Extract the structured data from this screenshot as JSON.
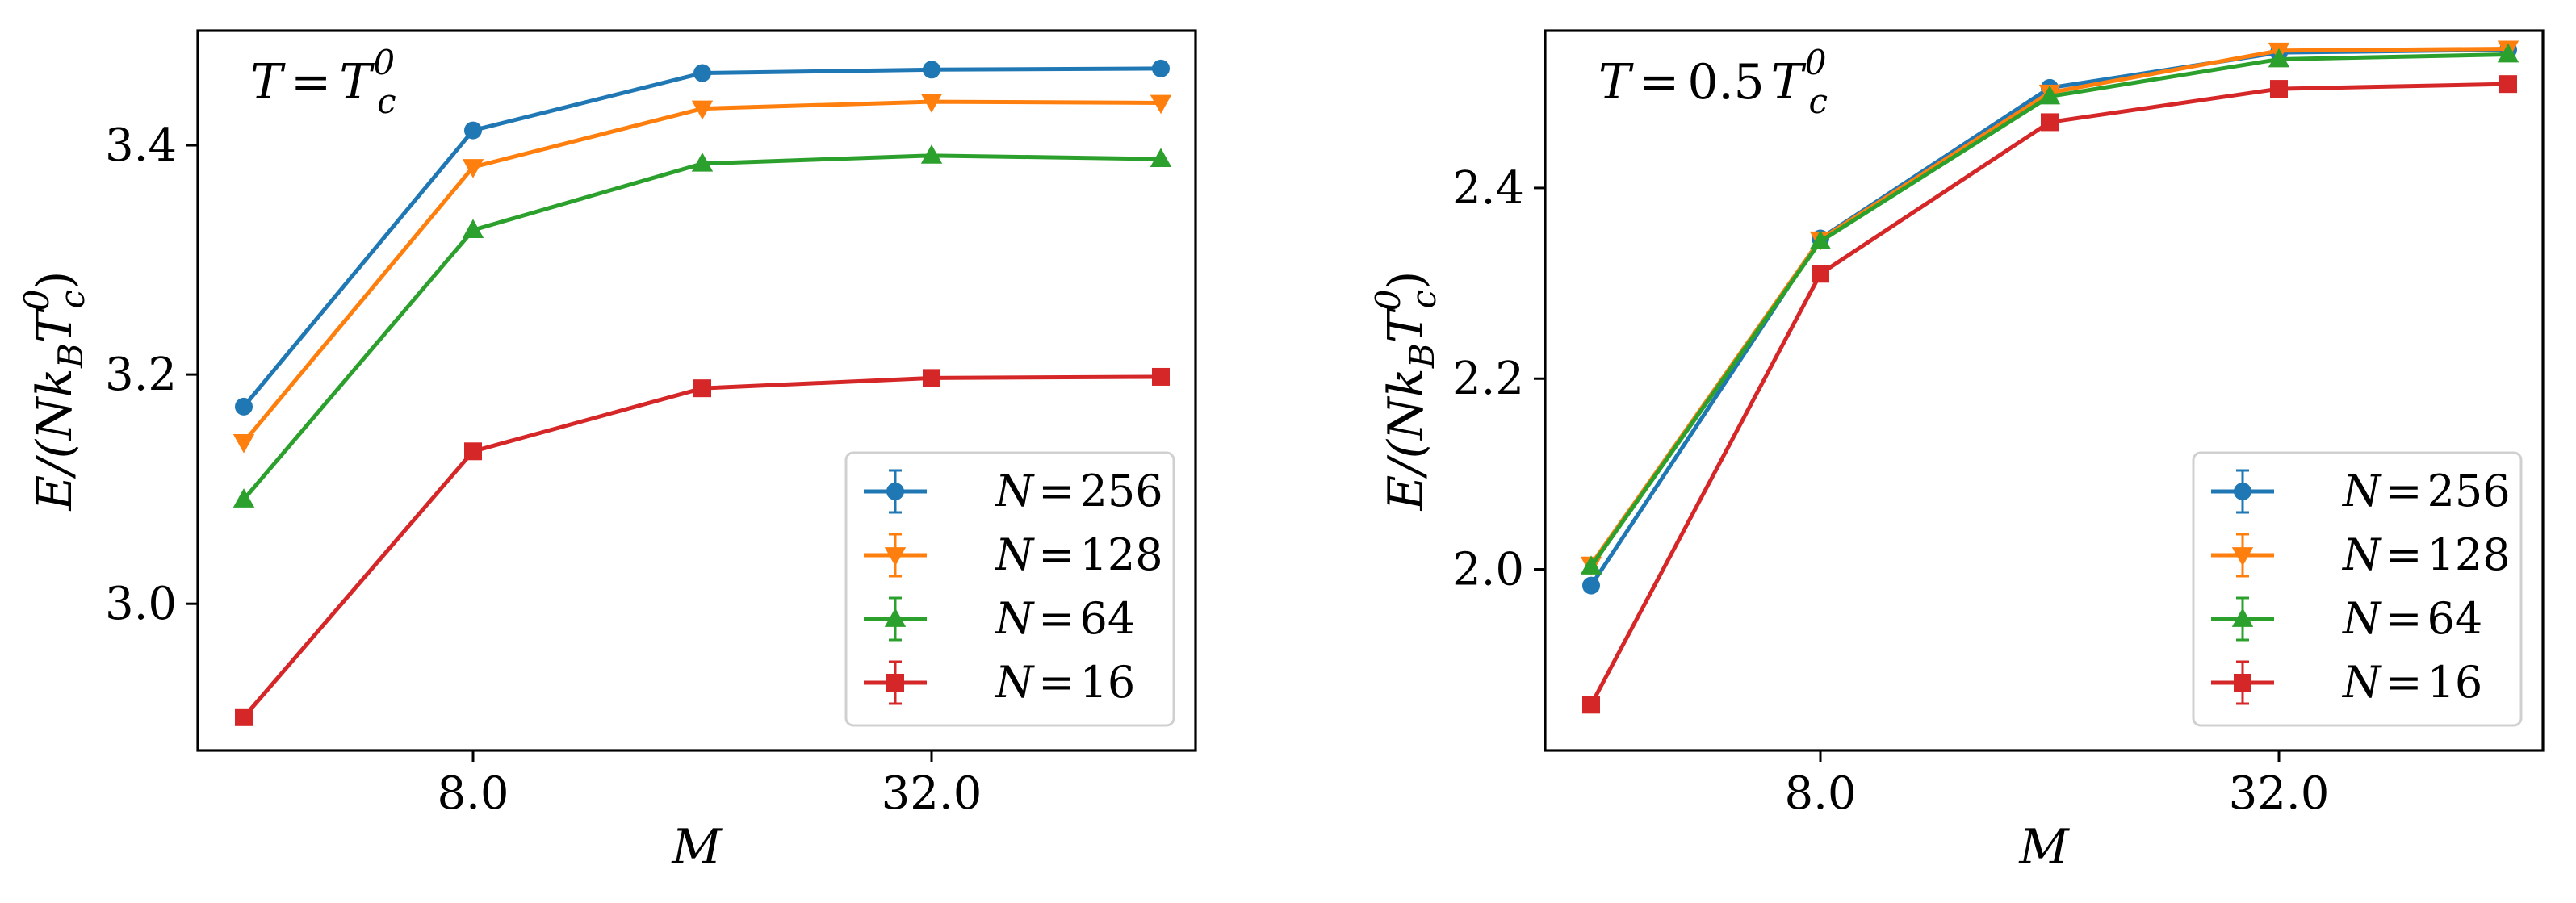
{
  "chart_data": [
    {
      "type": "line",
      "annotation": {
        "lhs": "T",
        "eq": "=",
        "rhs": "T",
        "rhs_sub": "c",
        "rhs_sup": "0"
      },
      "xlabel": "M",
      "ylabel": {
        "pre": "E/(",
        "N": "N",
        "k": "k",
        "ksub": "B",
        "T": "T",
        "Tsub": "c",
        "Tsup": "0",
        "post": ")"
      },
      "x_scale": "log2",
      "x": [
        4,
        8,
        16,
        32,
        64
      ],
      "xticks": [
        8,
        32
      ],
      "xtick_labels": [
        "8.0",
        "32.0"
      ],
      "ylim": [
        2.872,
        3.5
      ],
      "yticks": [
        3.0,
        3.2,
        3.4
      ],
      "ytick_labels": [
        "3.0",
        "3.2",
        "3.4"
      ],
      "legend_position": "lower right",
      "series": [
        {
          "name": "N = 256",
          "label_var": "N",
          "label_eq": "=",
          "label_num": "256",
          "color": "#1f77b4",
          "marker": "circle",
          "values": [
            3.172,
            3.413,
            3.463,
            3.466,
            3.467
          ]
        },
        {
          "name": "N = 128",
          "label_var": "N",
          "label_eq": "=",
          "label_num": "128",
          "color": "#ff7f0e",
          "marker": "triangle-down",
          "values": [
            3.141,
            3.381,
            3.432,
            3.438,
            3.437
          ]
        },
        {
          "name": "N = 64",
          "label_var": "N",
          "label_eq": "=",
          "label_num": "64",
          "color": "#2ca02c",
          "marker": "triangle-up",
          "values": [
            3.091,
            3.326,
            3.384,
            3.391,
            3.388
          ]
        },
        {
          "name": "N = 16",
          "label_var": "N",
          "label_eq": "=",
          "label_num": "16",
          "color": "#d62728",
          "marker": "square",
          "values": [
            2.901,
            3.133,
            3.188,
            3.197,
            3.198
          ]
        }
      ]
    },
    {
      "type": "line",
      "annotation": {
        "lhs": "T",
        "eq": "=",
        "coef": "0.5",
        "rhs": "T",
        "rhs_sub": "c",
        "rhs_sup": "0"
      },
      "xlabel": "M",
      "ylabel": {
        "pre": "E/(",
        "N": "N",
        "k": "k",
        "ksub": "B",
        "T": "T",
        "Tsub": "c",
        "Tsup": "0",
        "post": ")"
      },
      "x_scale": "log2",
      "x": [
        4,
        8,
        16,
        32,
        64
      ],
      "xticks": [
        8,
        32
      ],
      "xtick_labels": [
        "8.0",
        "32.0"
      ],
      "ylim": [
        1.81,
        2.565
      ],
      "yticks": [
        2.0,
        2.2,
        2.4
      ],
      "ytick_labels": [
        "2.0",
        "2.2",
        "2.4"
      ],
      "legend_position": "lower right",
      "series": [
        {
          "name": "N = 256",
          "label_var": "N",
          "label_eq": "=",
          "label_num": "256",
          "color": "#1f77b4",
          "marker": "circle",
          "values": [
            1.983,
            2.347,
            2.505,
            2.542,
            2.545
          ]
        },
        {
          "name": "N = 128",
          "label_var": "N",
          "label_eq": "=",
          "label_num": "128",
          "color": "#ff7f0e",
          "marker": "triangle-down",
          "values": [
            2.005,
            2.346,
            2.5,
            2.544,
            2.546
          ]
        },
        {
          "name": "N = 64",
          "label_var": "N",
          "label_eq": "=",
          "label_num": "64",
          "color": "#2ca02c",
          "marker": "triangle-up",
          "values": [
            2.003,
            2.344,
            2.496,
            2.535,
            2.54
          ]
        },
        {
          "name": "N = 16",
          "label_var": "N",
          "label_eq": "=",
          "label_num": "16",
          "color": "#d62728",
          "marker": "square",
          "values": [
            1.858,
            2.31,
            2.469,
            2.504,
            2.509
          ]
        }
      ]
    }
  ]
}
